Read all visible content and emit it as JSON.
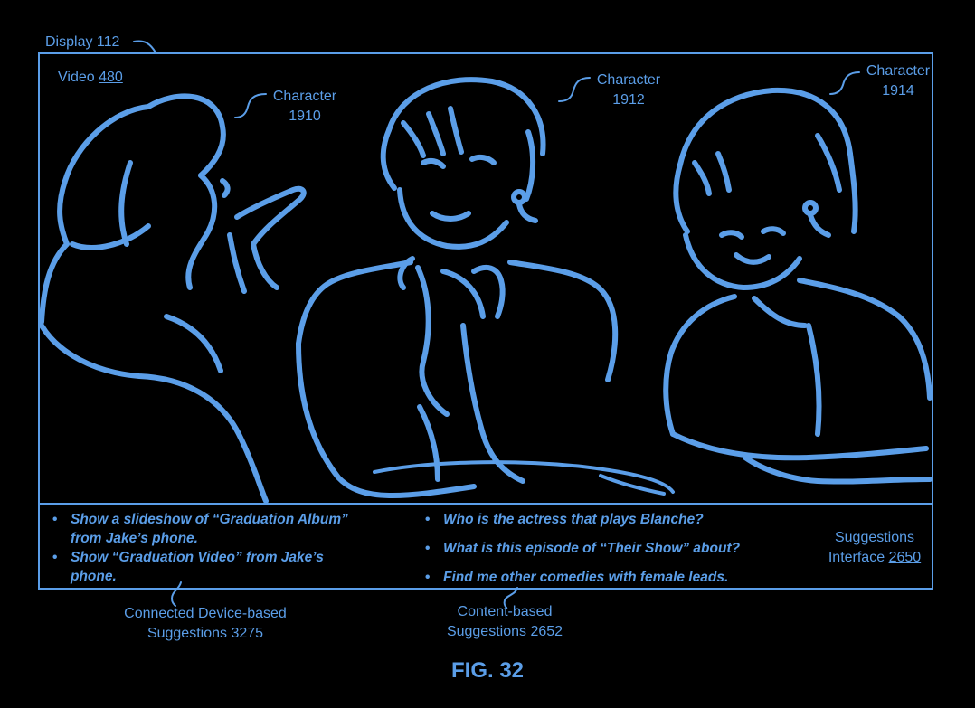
{
  "display": {
    "label": "Display 112"
  },
  "video": {
    "label": "Video",
    "number": "480"
  },
  "characters": [
    {
      "line1": "Character",
      "line2": "1910"
    },
    {
      "line1": "Character",
      "line2": "1912"
    },
    {
      "line1": "Character",
      "line2": "1914"
    }
  ],
  "connected_suggestions": [
    {
      "line1": "Show a slideshow of “Graduation Album”",
      "line2": "from Jake’s phone."
    },
    {
      "line1": "Show “Graduation Video” from Jake’s",
      "line2": "phone."
    }
  ],
  "content_suggestions": [
    "Who is the actress that plays Blanche?",
    "What is this episode of “Their Show” about?",
    "Find me other comedies with female leads."
  ],
  "suggestions_interface": {
    "line1": "Suggestions",
    "line2": "Interface",
    "number": "2650"
  },
  "callouts": {
    "connected": {
      "line1": "Connected Device-based",
      "line2": "Suggestions 3275"
    },
    "content": {
      "line1": "Content-based",
      "line2": "Suggestions 2652"
    }
  },
  "figure": "FIG. 32",
  "colors": {
    "line": "#5b9ee8",
    "background": "#000000"
  },
  "bullet": "•"
}
